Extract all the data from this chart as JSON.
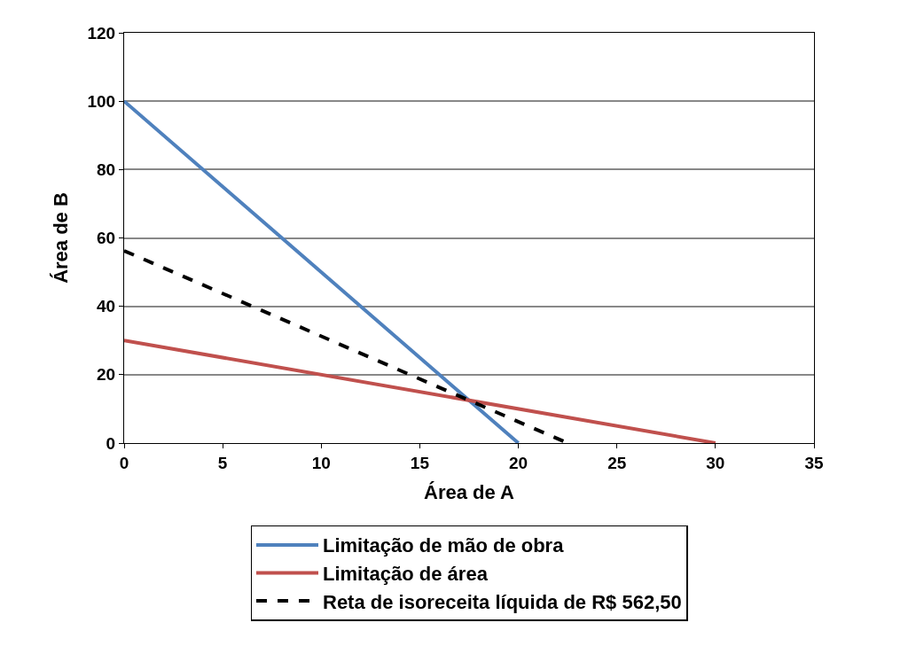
{
  "chart_data": {
    "type": "line",
    "xlabel": "Área de A",
    "ylabel": "Área de B",
    "xlim": [
      0,
      35
    ],
    "ylim": [
      0,
      120
    ],
    "xticks": [
      0,
      5,
      10,
      15,
      20,
      25,
      30,
      35
    ],
    "yticks": [
      0,
      20,
      40,
      60,
      80,
      100,
      120
    ],
    "grid": "y",
    "legend": "bottom",
    "marker": "none",
    "series": [
      {
        "name": "Limitação de mão de obra",
        "color": "#4f81bd",
        "x": [
          0,
          20
        ],
        "values": [
          100,
          0
        ],
        "line_style": "solid"
      },
      {
        "name": "Limitação de área",
        "color": "#c0504d",
        "x": [
          0,
          30
        ],
        "values": [
          30,
          0
        ],
        "line_style": "solid"
      },
      {
        "name": "Reta de isoreceita líquida de R$ 562,50",
        "color": "#000000",
        "x": [
          0,
          22.5
        ],
        "values": [
          56.25,
          0
        ],
        "line_style": "dashed"
      }
    ]
  }
}
